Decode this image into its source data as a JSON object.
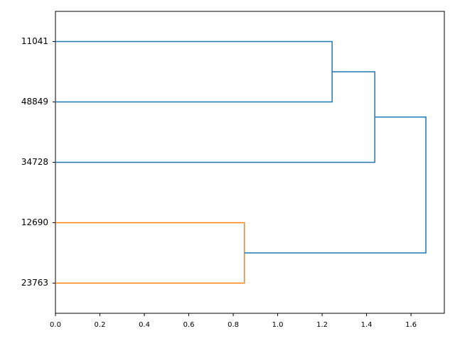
{
  "chart_data": {
    "type": "dendrogram",
    "orientation": "left",
    "labels": [
      "23763",
      "12690",
      "34728",
      "48849",
      "11041"
    ],
    "merges": [
      {
        "children": [
          0,
          1
        ],
        "height": 0.85,
        "color": "#ff7f0e"
      },
      {
        "children": [
          4,
          3
        ],
        "height": 1.245,
        "color": "#1f77b4"
      },
      {
        "children": [
          2,
          6
        ],
        "height": 1.437,
        "color": "#1f77b4"
      },
      {
        "children": [
          5,
          7
        ],
        "height": 1.667,
        "color": "#1f77b4"
      }
    ],
    "xlim": [
      0,
      1.75
    ],
    "xticks": [
      {
        "value": 0,
        "label": "0.0"
      },
      {
        "value": 0.2,
        "label": "0.2"
      },
      {
        "value": 0.4,
        "label": "0.4"
      },
      {
        "value": 0.6,
        "label": "0.6"
      },
      {
        "value": 0.8,
        "label": "0.8"
      },
      {
        "value": 1,
        "label": "1.0"
      },
      {
        "value": 1.2,
        "label": "1.2"
      },
      {
        "value": 1.4,
        "label": "1.4"
      },
      {
        "value": 1.6,
        "label": "1.6"
      }
    ]
  }
}
